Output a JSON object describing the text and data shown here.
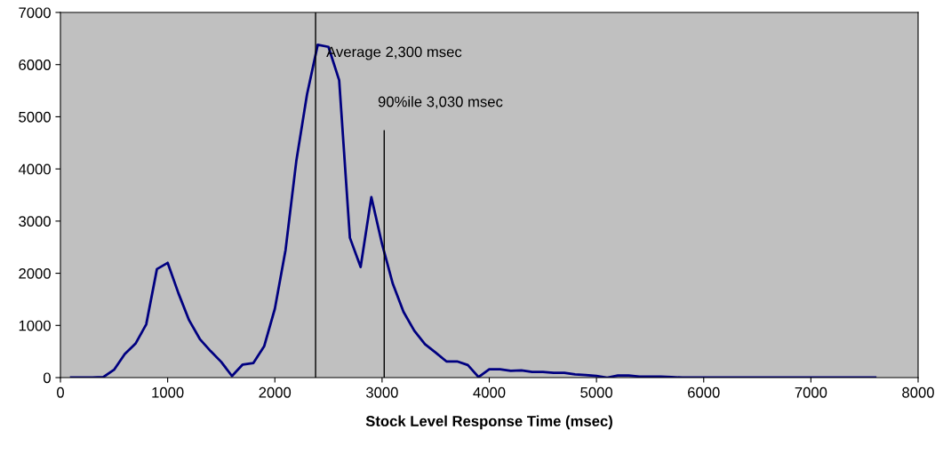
{
  "chart_data": {
    "type": "line",
    "xlabel": "Stock Level Response Time (msec)",
    "x": [
      100,
      200,
      300,
      400,
      500,
      600,
      700,
      800,
      900,
      1000,
      1100,
      1200,
      1300,
      1400,
      1500,
      1600,
      1700,
      1800,
      1900,
      2000,
      2100,
      2200,
      2300,
      2400,
      2500,
      2600,
      2700,
      2800,
      2900,
      3000,
      3100,
      3200,
      3300,
      3400,
      3500,
      3600,
      3700,
      3800,
      3900,
      4000,
      4100,
      4200,
      4300,
      4400,
      4500,
      4600,
      4700,
      4800,
      4900,
      5000,
      5100,
      5200,
      5300,
      5400,
      5500,
      5600,
      5700,
      5800,
      5900,
      6000,
      6100,
      6200,
      6300,
      6400,
      6500,
      6600,
      6700,
      6800,
      6900,
      7000,
      7100,
      7200,
      7300,
      7400,
      7500,
      7600
    ],
    "series": [
      {
        "color": "#000080",
        "values": [
          0,
          0,
          0,
          10,
          150,
          450,
          650,
          1020,
          2080,
          2200,
          1620,
          1100,
          740,
          510,
          300,
          30,
          250,
          280,
          600,
          1320,
          2450,
          4150,
          5430,
          6380,
          6340,
          5700,
          2680,
          2120,
          3460,
          2560,
          1800,
          1260,
          900,
          640,
          480,
          310,
          310,
          240,
          10,
          160,
          160,
          130,
          140,
          110,
          110,
          90,
          90,
          60,
          50,
          30,
          0,
          40,
          40,
          20,
          20,
          20,
          10,
          0,
          0,
          0,
          0,
          0,
          0,
          0,
          0,
          0,
          0,
          0,
          0,
          0,
          0,
          0,
          0,
          0,
          0,
          0
        ]
      },
      {
        "color": "#000000",
        "x": [
          3020,
          3020
        ],
        "values": [
          0,
          4730
        ]
      }
    ],
    "ref_lines": [
      {
        "axis": "x",
        "value": 2380,
        "color": "#000000"
      }
    ],
    "annotations": [
      {
        "text": "Average 2,300 msec",
        "x": 2480,
        "y": 6220
      },
      "90%ile 3,030 msec"
    ],
    "xlim": [
      0,
      8000
    ],
    "xticks": [
      0,
      1000,
      2000,
      3000,
      4000,
      5000,
      6000,
      7000,
      8000
    ],
    "ylim": [
      0,
      7000
    ],
    "yticks": [
      0,
      1000,
      2000,
      3000,
      4000,
      5000,
      6000,
      7000
    ],
    "grid": false,
    "marker": "none",
    "line_style": "solid"
  }
}
